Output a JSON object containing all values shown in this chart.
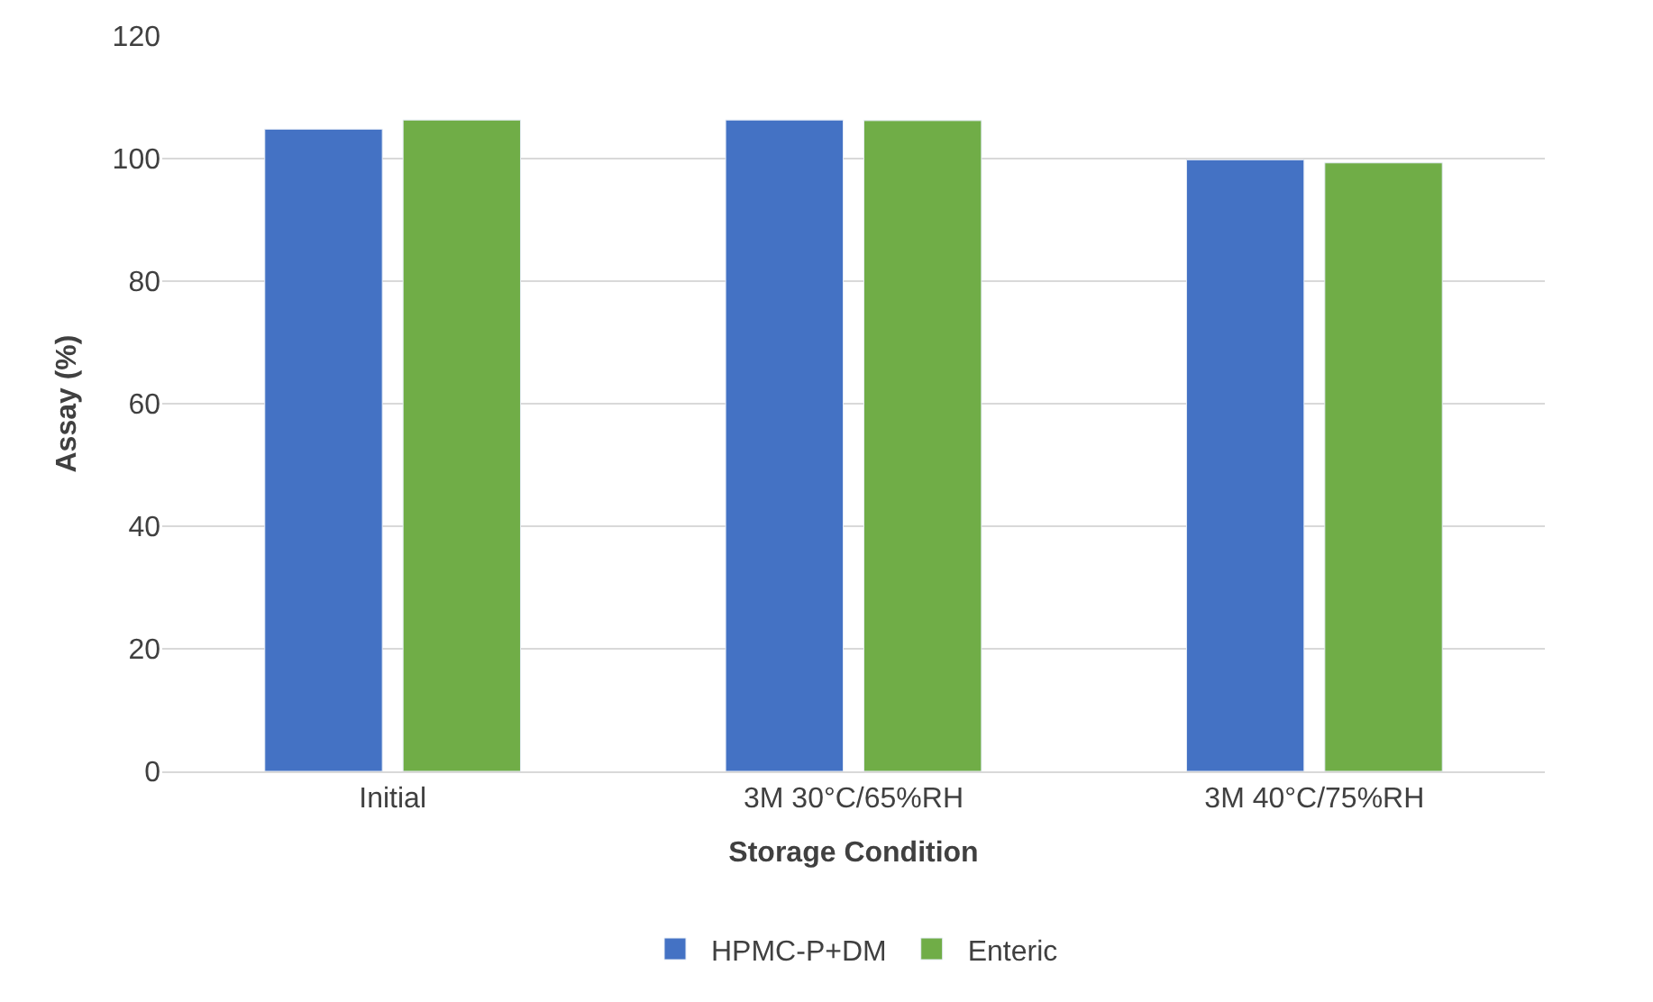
{
  "chart_data": {
    "type": "bar",
    "xlabel": "Storage Condition",
    "ylabel": "Assay (%)",
    "categories": [
      "Initial",
      "3M 30°C/65%RH",
      "3M 40°C/75%RH"
    ],
    "series": [
      {
        "name": "HPMC-P+DM",
        "color": "#4472c4",
        "values": [
          104.8,
          106.3,
          99.8
        ]
      },
      {
        "name": "Enteric",
        "color": "#70ad47",
        "values": [
          106.3,
          106.2,
          99.3
        ]
      }
    ],
    "ylim": [
      0,
      120
    ],
    "yticks": [
      0,
      20,
      40,
      60,
      80,
      100,
      120
    ],
    "grid": "y",
    "legend": "bottom"
  }
}
